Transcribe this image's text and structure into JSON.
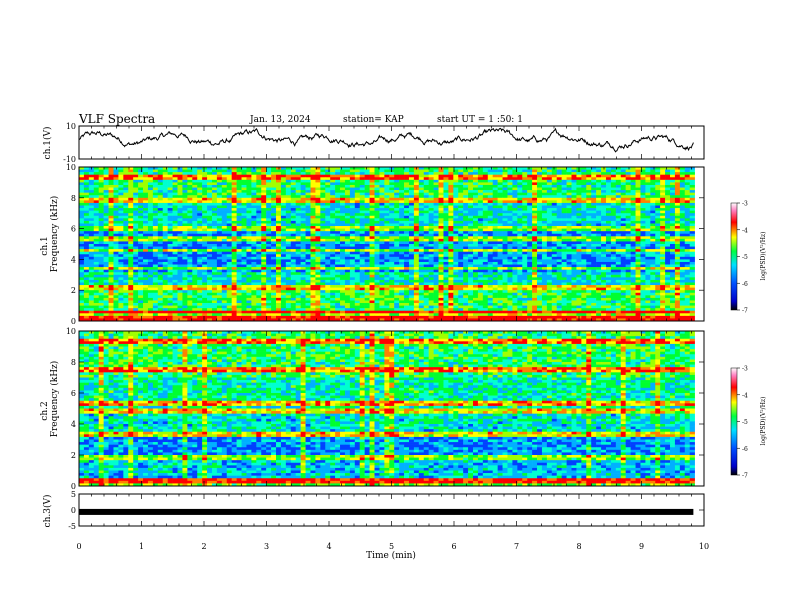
{
  "header": {
    "title": "VLF Spectra",
    "date": "Jan. 13, 2024",
    "station": "station= KAP",
    "start": "start UT =  1 :50: 1"
  },
  "chart_data": [
    {
      "type": "line",
      "name": "ch1-waveform",
      "ylabel": "ch.1(V)",
      "ylim": [
        -10,
        10
      ],
      "yticks": [
        "10",
        "-10"
      ],
      "x_range_min": [
        0,
        9.83
      ],
      "shape": "noisy waveform roughly between -4 and 8 V"
    },
    {
      "type": "heatmap",
      "name": "ch1-spectrogram",
      "ylabel_line1": "ch.1",
      "ylabel_line2": "Frequency (kHz)",
      "ylim": [
        0,
        10
      ],
      "yticks": [
        "0",
        "2",
        "4",
        "6",
        "8",
        "10"
      ],
      "colorbar": {
        "label": "log(PSD)(V²/Hz)",
        "range": [
          -7,
          -3
        ],
        "ticks": [
          "-3",
          "-4",
          "-5",
          "-6",
          "-7"
        ]
      },
      "notable_bands_khz": [
        0.2,
        0.6,
        2.2,
        3.4,
        4.6,
        5.3,
        6.0,
        7.8,
        9.3
      ]
    },
    {
      "type": "heatmap",
      "name": "ch2-spectrogram",
      "ylabel_line1": "ch.2",
      "ylabel_line2": "Frequency (kHz)",
      "ylim": [
        0,
        10
      ],
      "yticks": [
        "0",
        "2",
        "4",
        "6",
        "8",
        "10"
      ],
      "colorbar": {
        "label": "log(PSD)(V²/Hz)",
        "range": [
          -7,
          -3
        ],
        "ticks": [
          "-3",
          "-4",
          "-5",
          "-6",
          "-7"
        ]
      },
      "notable_bands_khz": [
        0.3,
        1.8,
        3.3,
        4.8,
        5.3,
        7.5,
        9.3
      ]
    },
    {
      "type": "line",
      "name": "ch3-signal",
      "ylabel": "ch.3(V)",
      "ylim": [
        -5,
        5
      ],
      "yticks": [
        "5",
        "0",
        "-5"
      ],
      "constant_value": -0.6
    }
  ],
  "xaxis": {
    "label": "Time (min)",
    "range": [
      0,
      10
    ],
    "ticks": [
      "0",
      "1",
      "2",
      "3",
      "4",
      "5",
      "6",
      "7",
      "8",
      "9",
      "10"
    ]
  }
}
